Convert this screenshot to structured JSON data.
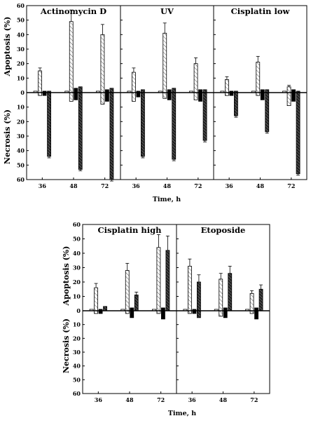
{
  "figure": {
    "y_label_up": "Apoptosis (%)",
    "y_label_down": "Necrosis (%)",
    "x_label": "Time, h",
    "colors": {
      "ink": "#000000",
      "light_fill": "#ffffff",
      "dark_fill": "#333333"
    }
  },
  "chart_data": [
    {
      "type": "bar",
      "title": "Actinomycin D",
      "categories": [
        "36",
        "48",
        "72"
      ],
      "yticks_up": [
        "60",
        "50",
        "40",
        "30",
        "20",
        "10",
        "0"
      ],
      "yticks_down": [
        "10",
        "20",
        "30",
        "40",
        "50",
        "60"
      ],
      "ylim": [
        -60,
        60
      ],
      "groups": [
        {
          "apoptosis": [
            1,
            15,
            1,
            1
          ],
          "necrosis": [
            0,
            2,
            2,
            44
          ],
          "err": [
            [
              0,
              0
            ],
            [
              2,
              0
            ],
            [
              0,
              0
            ],
            [
              0,
              1
            ]
          ]
        },
        {
          "apoptosis": [
            1,
            49,
            3,
            4
          ],
          "necrosis": [
            0,
            6,
            5,
            53
          ],
          "err": [
            [
              0,
              0
            ],
            [
              8,
              0
            ],
            [
              0,
              0
            ],
            [
              0,
              1
            ]
          ]
        },
        {
          "apoptosis": [
            1,
            40,
            2,
            3
          ],
          "necrosis": [
            0,
            8,
            6,
            60
          ],
          "err": [
            [
              0,
              0
            ],
            [
              7,
              0
            ],
            [
              0,
              0
            ],
            [
              0,
              1
            ]
          ]
        }
      ]
    },
    {
      "type": "bar",
      "title": "UV",
      "categories": [
        "36",
        "48",
        "72"
      ],
      "yticks_up": [],
      "yticks_down": [],
      "ylim": [
        -60,
        60
      ],
      "groups": [
        {
          "apoptosis": [
            1,
            14,
            1,
            2
          ],
          "necrosis": [
            0,
            6,
            3,
            44
          ],
          "err": [
            [
              0,
              0
            ],
            [
              3,
              0
            ],
            [
              0,
              0
            ],
            [
              0,
              1
            ]
          ]
        },
        {
          "apoptosis": [
            1,
            41,
            2,
            3
          ],
          "necrosis": [
            0,
            4,
            5,
            46
          ],
          "err": [
            [
              0,
              0
            ],
            [
              7,
              0
            ],
            [
              0,
              0
            ],
            [
              0,
              1
            ]
          ]
        },
        {
          "apoptosis": [
            1,
            20,
            2,
            2
          ],
          "necrosis": [
            0,
            5,
            6,
            33
          ],
          "err": [
            [
              0,
              0
            ],
            [
              4,
              0
            ],
            [
              0,
              0
            ],
            [
              0,
              1
            ]
          ]
        }
      ]
    },
    {
      "type": "bar",
      "title": "Cisplatin low",
      "categories": [
        "36",
        "48",
        "72"
      ],
      "yticks_up": [],
      "yticks_down": [],
      "ylim": [
        -60,
        60
      ],
      "groups": [
        {
          "apoptosis": [
            1,
            9,
            1,
            1
          ],
          "necrosis": [
            0,
            2,
            2,
            16
          ],
          "err": [
            [
              0,
              0
            ],
            [
              2,
              0
            ],
            [
              0,
              0
            ],
            [
              0,
              1
            ]
          ]
        },
        {
          "apoptosis": [
            1,
            21,
            2,
            2
          ],
          "necrosis": [
            0,
            2,
            5,
            27
          ],
          "err": [
            [
              0,
              0
            ],
            [
              4,
              0
            ],
            [
              0,
              0
            ],
            [
              0,
              1
            ]
          ]
        },
        {
          "apoptosis": [
            1,
            4,
            2,
            1
          ],
          "necrosis": [
            0,
            9,
            6,
            56
          ],
          "err": [
            [
              0,
              0
            ],
            [
              1,
              0
            ],
            [
              0,
              0
            ],
            [
              0,
              1
            ]
          ]
        }
      ]
    },
    {
      "type": "bar",
      "title": "Cisplatin high",
      "categories": [
        "36",
        "48",
        "72"
      ],
      "yticks_up": [
        "60",
        "50",
        "40",
        "30",
        "20",
        "10",
        "0"
      ],
      "yticks_down": [
        "10",
        "20",
        "30",
        "40",
        "50",
        "60"
      ],
      "ylim": [
        -60,
        60
      ],
      "groups": [
        {
          "apoptosis": [
            1,
            16,
            1,
            3
          ],
          "necrosis": [
            0,
            2,
            2,
            0
          ],
          "err": [
            [
              0,
              0
            ],
            [
              3,
              0
            ],
            [
              0,
              0
            ],
            [
              0,
              0
            ]
          ]
        },
        {
          "apoptosis": [
            1,
            28,
            2,
            11
          ],
          "necrosis": [
            0,
            2,
            5,
            0
          ],
          "err": [
            [
              0,
              0
            ],
            [
              5,
              0
            ],
            [
              0,
              0
            ],
            [
              2,
              0
            ]
          ]
        },
        {
          "apoptosis": [
            1,
            44,
            2,
            42
          ],
          "necrosis": [
            0,
            2,
            6,
            0
          ],
          "err": [
            [
              0,
              0
            ],
            [
              9,
              0
            ],
            [
              0,
              0
            ],
            [
              10,
              0
            ]
          ]
        }
      ]
    },
    {
      "type": "bar",
      "title": "Etoposide",
      "categories": [
        "36",
        "48",
        "72"
      ],
      "yticks_up": [],
      "yticks_down": [],
      "ylim": [
        -60,
        60
      ],
      "groups": [
        {
          "apoptosis": [
            1,
            31,
            1,
            20
          ],
          "necrosis": [
            0,
            2,
            2,
            5
          ],
          "err": [
            [
              0,
              0
            ],
            [
              5,
              0
            ],
            [
              0,
              0
            ],
            [
              5,
              0
            ]
          ]
        },
        {
          "apoptosis": [
            1,
            22,
            2,
            26
          ],
          "necrosis": [
            0,
            4,
            5,
            0
          ],
          "err": [
            [
              0,
              0
            ],
            [
              4,
              0
            ],
            [
              0,
              0
            ],
            [
              5,
              0
            ]
          ]
        },
        {
          "apoptosis": [
            1,
            12,
            2,
            15
          ],
          "necrosis": [
            0,
            2,
            6,
            0
          ],
          "err": [
            [
              0,
              0
            ],
            [
              2,
              0
            ],
            [
              0,
              0
            ],
            [
              3,
              0
            ]
          ]
        }
      ]
    }
  ]
}
